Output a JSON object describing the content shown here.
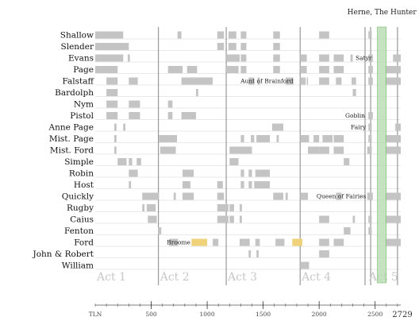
{
  "chart_data": {
    "type": "timeline",
    "x_axis": {
      "label": "TLN",
      "min": 0,
      "max": 2729,
      "ticks": [
        500,
        1000,
        1500,
        2000,
        2500
      ],
      "minor_tick_step": 100,
      "end_label": "2729"
    },
    "characters": [
      "Shallow",
      "Slender",
      "Evans",
      "Page",
      "Falstaff",
      "Bardolph",
      "Nym",
      "Pistol",
      "Anne Page",
      "Mist. Page",
      "Mist. Ford",
      "Simple",
      "Robin",
      "Host",
      "Quickly",
      "Rugby",
      "Caius",
      "Fenton",
      "Ford",
      "John & Robert",
      "William"
    ],
    "acts": [
      {
        "label": "Act 1",
        "start": 0
      },
      {
        "label": "Act 2",
        "start": 565
      },
      {
        "label": "Act 3",
        "start": 1170
      },
      {
        "label": "Act 4",
        "start": 1830
      },
      {
        "label": "Act 5",
        "start": 2430
      }
    ],
    "scene_boundaries": [
      565,
      1170,
      1830,
      2410,
      2460,
      2700
    ],
    "highlight": {
      "label": "Herne, The Hunter",
      "start": 2520,
      "end": 2600
    },
    "presence_color": "#c4c4c4",
    "highlight_color": "#b6dcb0",
    "disguise_color": "#efd27a",
    "segments": [
      {
        "row": 0,
        "spans": [
          [
            0,
            250
          ],
          [
            735,
            770
          ],
          [
            1090,
            1150
          ],
          [
            1190,
            1260
          ],
          [
            1300,
            1350
          ],
          [
            1590,
            1650
          ],
          [
            2000,
            2090
          ],
          [
            2440,
            2470
          ]
        ]
      },
      {
        "row": 1,
        "spans": [
          [
            0,
            300
          ],
          [
            1090,
            1150
          ],
          [
            1190,
            1260
          ],
          [
            1300,
            1350
          ],
          [
            1590,
            1650
          ]
        ]
      },
      {
        "row": 2,
        "spans": [
          [
            0,
            250
          ],
          [
            290,
            310
          ],
          [
            1170,
            1290
          ],
          [
            1300,
            1350
          ],
          [
            1590,
            1650
          ],
          [
            1830,
            1890
          ],
          [
            2000,
            2090
          ],
          [
            2130,
            2220
          ],
          [
            2280,
            2300
          ],
          [
            2440,
            2480
          ],
          [
            2660,
            2729
          ]
        ]
      },
      {
        "row": 3,
        "spans": [
          [
            0,
            200
          ],
          [
            650,
            780
          ],
          [
            820,
            910
          ],
          [
            1170,
            1280
          ],
          [
            1300,
            1350
          ],
          [
            1590,
            1650
          ],
          [
            1830,
            1890
          ],
          [
            2000,
            2090
          ],
          [
            2130,
            2220
          ],
          [
            2440,
            2480
          ],
          [
            2590,
            2729
          ]
        ]
      },
      {
        "row": 4,
        "spans": [
          [
            100,
            200
          ],
          [
            300,
            380
          ],
          [
            770,
            1050
          ],
          [
            1370,
            1420
          ],
          [
            1450,
            1470
          ],
          [
            1700,
            1770
          ],
          [
            1830,
            1880
          ],
          [
            1890,
            1900
          ],
          [
            2000,
            2090
          ],
          [
            2150,
            2200
          ],
          [
            2290,
            2330
          ],
          [
            2440,
            2480
          ],
          [
            2590,
            2729
          ]
        ]
      },
      {
        "row": 5,
        "spans": [
          [
            100,
            200
          ],
          [
            900,
            920
          ],
          [
            2300,
            2330
          ]
        ]
      },
      {
        "row": 6,
        "spans": [
          [
            100,
            200
          ],
          [
            300,
            400
          ],
          [
            650,
            690
          ]
        ]
      },
      {
        "row": 7,
        "spans": [
          [
            100,
            200
          ],
          [
            300,
            400
          ],
          [
            650,
            690
          ],
          [
            770,
            900
          ],
          [
            2440,
            2480
          ]
        ]
      },
      {
        "row": 8,
        "spans": [
          [
            170,
            190
          ],
          [
            250,
            270
          ],
          [
            1580,
            1680
          ],
          [
            2440,
            2470
          ],
          [
            2680,
            2729
          ]
        ]
      },
      {
        "row": 9,
        "spans": [
          [
            170,
            190
          ],
          [
            570,
            730
          ],
          [
            1300,
            1330
          ],
          [
            1390,
            1420
          ],
          [
            1440,
            1560
          ],
          [
            1620,
            1640
          ],
          [
            1830,
            1910
          ],
          [
            1950,
            2000
          ],
          [
            2030,
            2120
          ],
          [
            2130,
            2220
          ],
          [
            2440,
            2470
          ],
          [
            2590,
            2729
          ]
        ]
      },
      {
        "row": 10,
        "spans": [
          [
            170,
            190
          ],
          [
            580,
            720
          ],
          [
            1200,
            1400
          ],
          [
            1900,
            2000
          ],
          [
            2000,
            2090
          ],
          [
            2130,
            2220
          ],
          [
            2430,
            2470
          ],
          [
            2590,
            2729
          ]
        ]
      },
      {
        "row": 11,
        "spans": [
          [
            200,
            280
          ],
          [
            300,
            330
          ],
          [
            370,
            410
          ],
          [
            1200,
            1280
          ],
          [
            2220,
            2270
          ]
        ]
      },
      {
        "row": 12,
        "spans": [
          [
            300,
            380
          ],
          [
            780,
            880
          ],
          [
            1300,
            1330
          ],
          [
            1370,
            1400
          ],
          [
            1430,
            1560
          ]
        ]
      },
      {
        "row": 13,
        "spans": [
          [
            300,
            320
          ],
          [
            780,
            850
          ],
          [
            1090,
            1140
          ],
          [
            1300,
            1330
          ],
          [
            1370,
            1400
          ],
          [
            1420,
            1560
          ]
        ]
      },
      {
        "row": 14,
        "spans": [
          [
            420,
            570
          ],
          [
            700,
            720
          ],
          [
            780,
            880
          ],
          [
            1090,
            1150
          ],
          [
            1590,
            1680
          ],
          [
            1700,
            1720
          ],
          [
            1830,
            1900
          ],
          [
            2150,
            2200
          ],
          [
            2430,
            2480
          ],
          [
            2590,
            2729
          ]
        ]
      },
      {
        "row": 15,
        "spans": [
          [
            420,
            440
          ],
          [
            460,
            540
          ],
          [
            1090,
            1190
          ],
          [
            1200,
            1240
          ],
          [
            1290,
            1310
          ]
        ]
      },
      {
        "row": 16,
        "spans": [
          [
            470,
            550
          ],
          [
            1090,
            1190
          ],
          [
            1200,
            1240
          ],
          [
            1290,
            1310
          ],
          [
            2000,
            2090
          ],
          [
            2300,
            2320
          ],
          [
            2440,
            2470
          ],
          [
            2590,
            2729
          ]
        ]
      },
      {
        "row": 17,
        "spans": [
          [
            560,
            590
          ],
          [
            2220,
            2280
          ],
          [
            2440,
            2470
          ]
        ]
      },
      {
        "row": 18,
        "spans": [
          [
            660,
            740
          ],
          [
            1050,
            1100
          ],
          [
            1290,
            1380
          ],
          [
            1430,
            1470
          ],
          [
            1610,
            1690
          ],
          [
            2000,
            2090
          ],
          [
            2130,
            2220
          ],
          [
            2590,
            2729
          ]
        ]
      },
      {
        "row": 19,
        "spans": [
          [
            1370,
            1390
          ],
          [
            1440,
            1460
          ],
          [
            2000,
            2090
          ]
        ]
      },
      {
        "row": 20,
        "spans": [
          [
            1830,
            1910
          ]
        ]
      }
    ],
    "disguise_segments": [
      {
        "row": 18,
        "spans": [
          [
            860,
            1000
          ],
          [
            1760,
            1850
          ]
        ]
      }
    ],
    "annotations": [
      {
        "row": 2,
        "x": 2470,
        "text": "Satyr"
      },
      {
        "row": 4,
        "x": 1770,
        "text": "Aunt of Brainford"
      },
      {
        "row": 7,
        "x": 2410,
        "text": "Goblin"
      },
      {
        "row": 8,
        "x": 2420,
        "text": "Fairy"
      },
      {
        "row": 14,
        "x": 2420,
        "text": "Queen of Fairies"
      },
      {
        "row": 18,
        "x": 850,
        "text": "Broome"
      }
    ]
  }
}
